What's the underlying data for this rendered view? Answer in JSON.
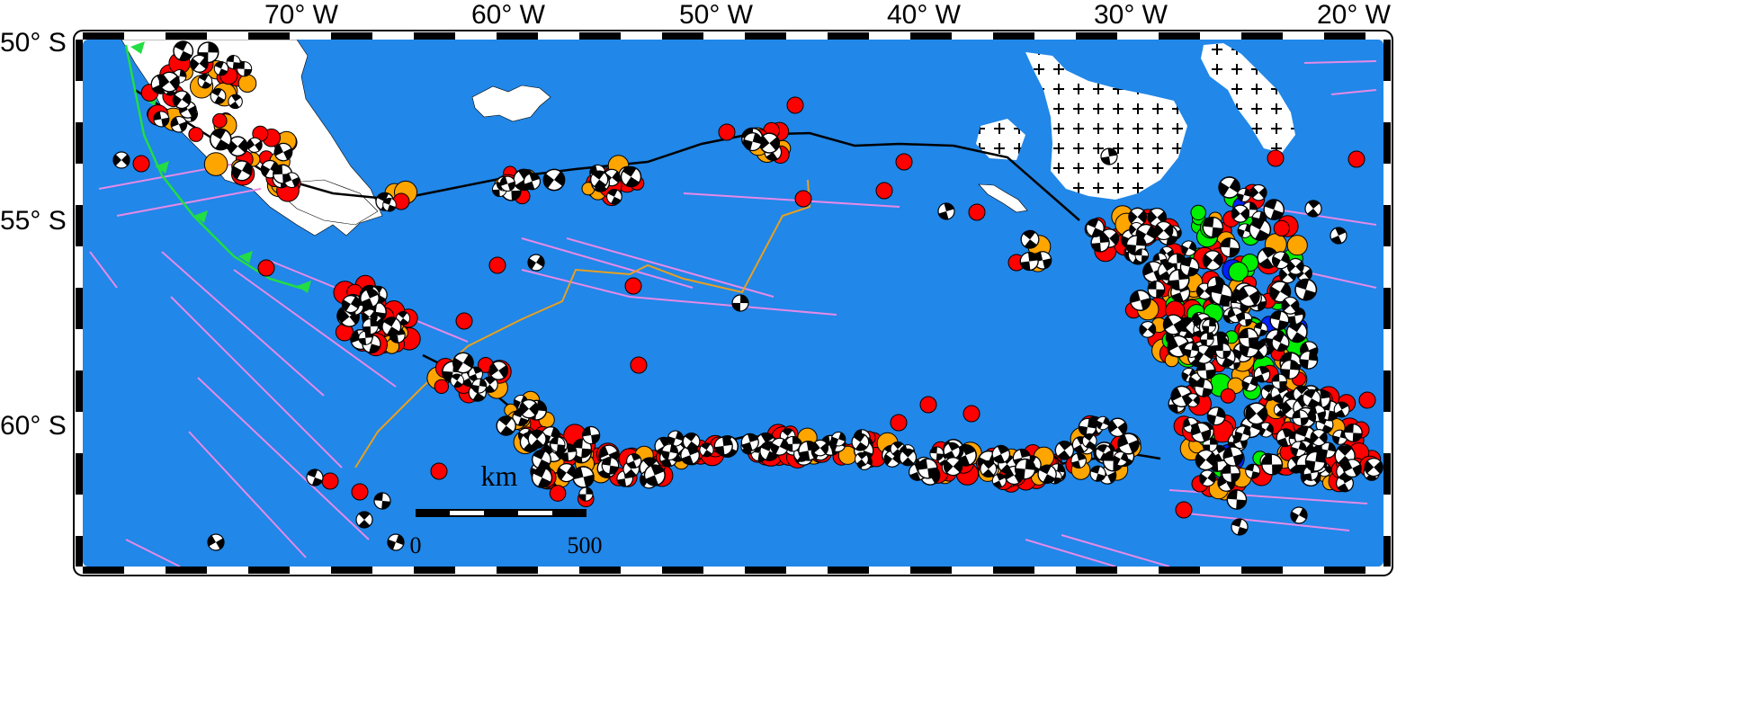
{
  "longitude_labels": [
    "70° W",
    "60° W",
    "50° W",
    "40° W",
    "30° W",
    "20° W"
  ],
  "latitude_labels": [
    "50° S",
    "55° S",
    "60° S"
  ],
  "scale_bar": {
    "unit": "km",
    "min_label": "0",
    "max_label": "500"
  },
  "colors": {
    "ocean": "#2187e8",
    "land": "#ffffff",
    "ice_shelf": "#ffffff",
    "plate_boundary": "#000000",
    "fracture_zones": "#e58ae8",
    "ridges_orange": "#e8a020",
    "trench": "#22dd44",
    "quake_shallow": "#ff0000",
    "quake_intermediate": "#ffa500",
    "quake_deep": "#00ee00",
    "quake_very_deep": "#0022ff",
    "mechanism_dark": "#000000",
    "mechanism_light": "#ffffff"
  },
  "icons": {
    "frame": "checkered-map-frame",
    "focal": "focal-mechanism-beachball-icon",
    "trench_tooth": "subduction-triangle-icon"
  }
}
